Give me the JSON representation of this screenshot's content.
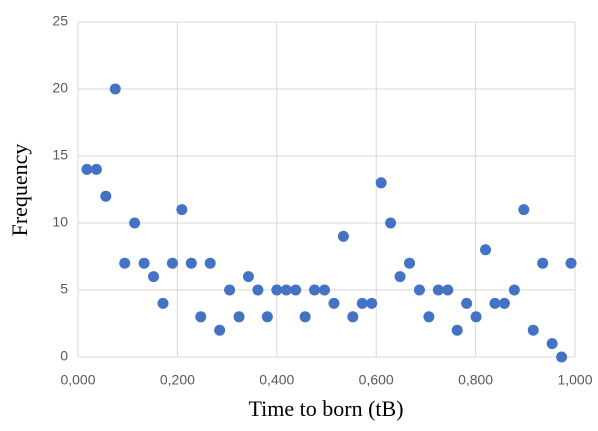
{
  "chart_data": {
    "type": "scatter",
    "xlabel": "Time to born (tB)",
    "ylabel": "Frequency",
    "x": [
      0.018,
      0.037,
      0.056,
      0.075,
      0.094,
      0.114,
      0.133,
      0.152,
      0.171,
      0.19,
      0.209,
      0.228,
      0.247,
      0.266,
      0.285,
      0.305,
      0.324,
      0.343,
      0.362,
      0.381,
      0.4,
      0.419,
      0.438,
      0.457,
      0.476,
      0.496,
      0.515,
      0.534,
      0.553,
      0.572,
      0.591,
      0.61,
      0.629,
      0.648,
      0.667,
      0.687,
      0.706,
      0.725,
      0.744,
      0.763,
      0.782,
      0.801,
      0.82,
      0.839,
      0.858,
      0.878,
      0.897,
      0.916,
      0.935,
      0.954,
      0.973,
      0.992
    ],
    "values": [
      14,
      14,
      12,
      20,
      7,
      10,
      7,
      6,
      4,
      7,
      11,
      7,
      3,
      7,
      2,
      5,
      3,
      6,
      5,
      3,
      5,
      5,
      5,
      3,
      5,
      5,
      4,
      9,
      3,
      4,
      4,
      13,
      10,
      6,
      7,
      5,
      3,
      5,
      5,
      2,
      4,
      3,
      8,
      4,
      4,
      5,
      11,
      2,
      7,
      1,
      0,
      7
    ],
    "color": "#4472c4",
    "xlim": [
      0,
      1
    ],
    "ylim": [
      0,
      25
    ],
    "xticks": [
      {
        "value": 0,
        "label": "0,000"
      },
      {
        "value": 0.2,
        "label": "0,200"
      },
      {
        "value": 0.4,
        "label": "0,400"
      },
      {
        "value": 0.6,
        "label": "0,600"
      },
      {
        "value": 0.8,
        "label": "0,800"
      },
      {
        "value": 1,
        "label": "1,000"
      }
    ],
    "yticks": [
      0,
      5,
      10,
      15,
      20,
      25
    ],
    "grid": true
  }
}
